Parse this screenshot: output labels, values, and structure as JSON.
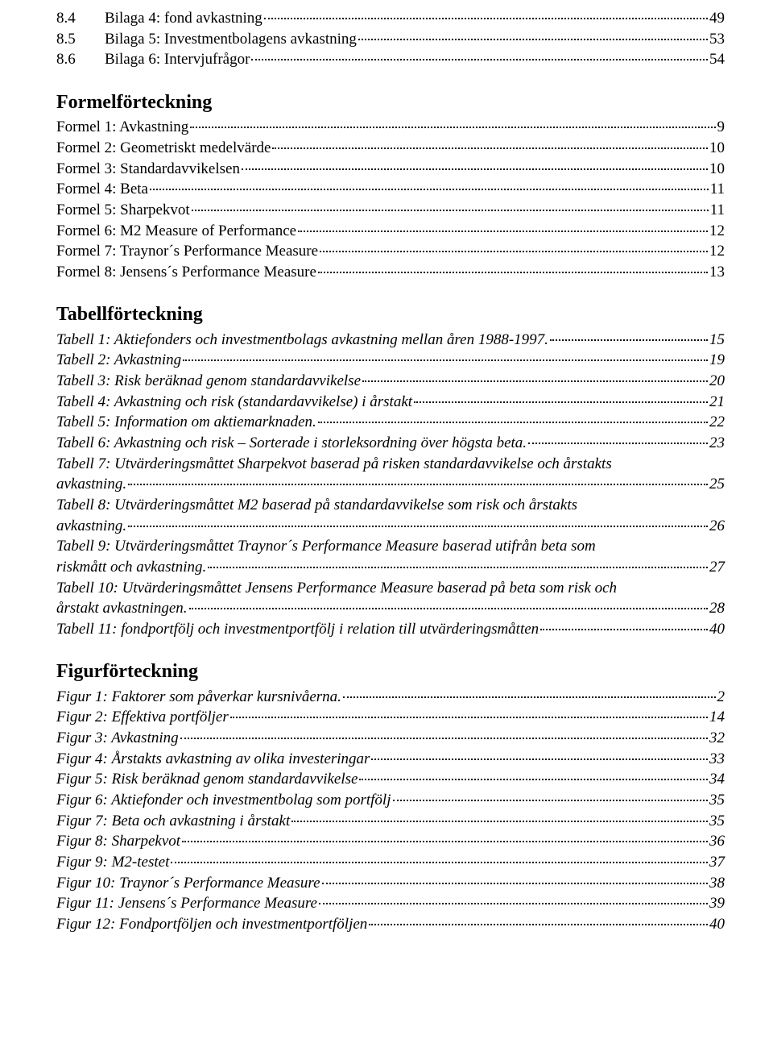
{
  "toc_top": [
    {
      "num": "8.4",
      "label": "Bilaga 4: fond avkastning",
      "page": "49"
    },
    {
      "num": "8.5",
      "label": "Bilaga 5: Investmentbolagens avkastning",
      "page": "53"
    },
    {
      "num": "8.6",
      "label": "Bilaga 6: Intervjufrågor",
      "page": "54"
    }
  ],
  "formel_heading": "Formelförteckning",
  "formel": [
    {
      "label": "Formel 1: Avkastning",
      "page": "9"
    },
    {
      "label": "Formel 2: Geometriskt medelvärde",
      "page": "10"
    },
    {
      "label": "Formel 3: Standardavvikelsen",
      "page": "10"
    },
    {
      "label": "Formel 4: Beta",
      "page": "11"
    },
    {
      "label": "Formel 5: Sharpekvot",
      "page": "11"
    },
    {
      "label": "Formel 6: M2 Measure of Performance",
      "page": "12"
    },
    {
      "label": "Formel 7: Traynor´s Performance Measure",
      "page": "12"
    },
    {
      "label": "Formel 8: Jensens´s Performance Measure",
      "page": "13"
    }
  ],
  "tabell_heading": "Tabellförteckning",
  "tabell": [
    {
      "label": "Tabell 1: Aktiefonders och investmentbolags avkastning mellan åren 1988-1997.",
      "page": "15"
    },
    {
      "label": "Tabell 2: Avkastning",
      "page": "19"
    },
    {
      "label": "Tabell 3: Risk beräknad genom standardavvikelse",
      "page": "20"
    },
    {
      "label": "Tabell 4: Avkastning och risk (standardavvikelse) i årstakt",
      "page": "21"
    },
    {
      "label": "Tabell 5: Information om aktiemarknaden. ",
      "page": "22"
    },
    {
      "label": "Tabell 6: Avkastning och risk – Sorterade i storleksordning över högsta beta. ",
      "page": "23"
    }
  ],
  "tabell_wrap": [
    {
      "line1": "Tabell 7: Utvärderingsmåttet Sharpekvot baserad på risken standardavvikelse och årstakts",
      "line2": "avkastning. ",
      "page": "25"
    },
    {
      "line1": "Tabell 8: Utvärderingsmåttet M2 baserad på standardavvikelse som risk och årstakts",
      "line2": "avkastning. ",
      "page": "26"
    },
    {
      "line1": "Tabell 9: Utvärderingsmåttet Traynor´s Performance Measure baserad utifrån beta som",
      "line2": "riskmått och avkastning. ",
      "page": "27"
    },
    {
      "line1": "Tabell 10: Utvärderingsmåttet Jensens Performance Measure baserad på beta som risk och",
      "line2": "årstakt avkastningen.",
      "page": "28"
    }
  ],
  "tabell_tail": [
    {
      "label": "Tabell 11: fondportfölj och investmentportfölj i relation till utvärderingsmåtten",
      "page": "40"
    }
  ],
  "figur_heading": "Figurförteckning",
  "figur": [
    {
      "label": "Figur 1: Faktorer som påverkar kursnivåerna. ",
      "page": "2"
    },
    {
      "label": "Figur 2: Effektiva portföljer",
      "page": "14"
    },
    {
      "label": "Figur 3: Avkastning",
      "page": "32"
    },
    {
      "label": "Figur 4: Årstakts avkastning av olika investeringar",
      "page": "33"
    },
    {
      "label": "Figur 5: Risk beräknad genom standardavvikelse",
      "page": "34"
    },
    {
      "label": "Figur 6: Aktiefonder och investmentbolag som portfölj",
      "page": "35"
    },
    {
      "label": "Figur 7: Beta och avkastning i årstakt",
      "page": "35"
    },
    {
      "label": "Figur 8: Sharpekvot",
      "page": "36"
    },
    {
      "label": "Figur 9: M2-testet",
      "page": "37"
    },
    {
      "label": "Figur 10: Traynor´s Performance Measure",
      "page": "38"
    },
    {
      "label": "Figur 11: Jensens´s Performance Measure",
      "page": "39"
    },
    {
      "label": "Figur 12: Fondportföljen och investmentportföljen",
      "page": "40"
    }
  ]
}
